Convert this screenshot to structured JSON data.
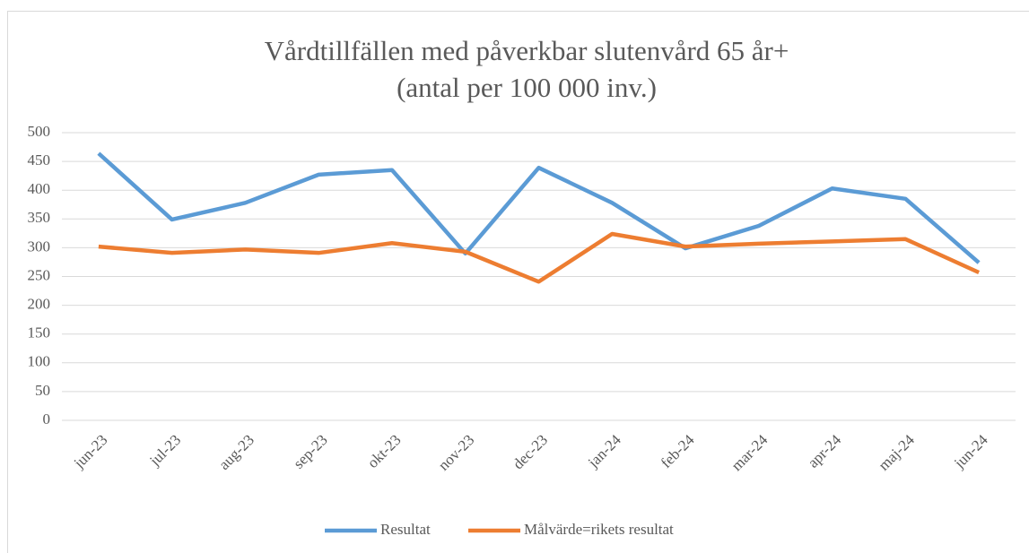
{
  "chart_data": {
    "type": "line",
    "title": "Vårdtillfällen med påverkbar slutenvård 65 år+",
    "subtitle": "(antal per 100 000 inv.)",
    "categories": [
      "jun-23",
      "jul-23",
      "aug-23",
      "sep-23",
      "okt-23",
      "nov-23",
      "dec-23",
      "jan-24",
      "feb-24",
      "mar-24",
      "apr-24",
      "maj-24",
      "jun-24"
    ],
    "series": [
      {
        "name": "Resultat",
        "color": "#5b9bd5",
        "values": [
          464,
          349,
          378,
          427,
          435,
          290,
          439,
          378,
          299,
          338,
          403,
          385,
          274
        ]
      },
      {
        "name": "Målvärde=rikets resultat",
        "color": "#ed7d31",
        "values": [
          302,
          291,
          297,
          291,
          308,
          293,
          241,
          324,
          302,
          307,
          311,
          315,
          257
        ]
      }
    ],
    "ylim": [
      0,
      500
    ],
    "yticks": [
      0,
      50,
      100,
      150,
      200,
      250,
      300,
      350,
      400,
      450,
      500
    ],
    "grid": true,
    "legend": "bottom"
  }
}
